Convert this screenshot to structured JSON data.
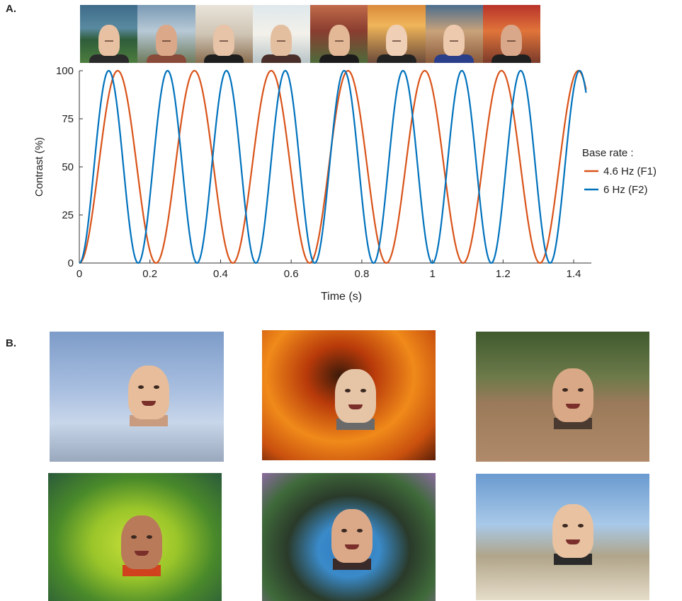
{
  "panel_a_label": "A.",
  "panel_b_label": "B.",
  "strip_photos": [
    {
      "bg": "linear-gradient(180deg,#3d6b8a 0%,#5a8aa0 40%,#2f5d3a 60%,#4d7d3e 100%)",
      "skin": "#e8c1a2",
      "shirt": "#2a2a2a"
    },
    {
      "bg": "linear-gradient(180deg,#7a9ab5 0%,#b7c9d6 45%,#6d7a5a 100%)",
      "skin": "#dba88a",
      "shirt": "#8a4a3a"
    },
    {
      "bg": "linear-gradient(180deg,#e9e3d9 0%,#cfc5b5 50%,#8a6e50 100%)",
      "skin": "#e7c3a8",
      "shirt": "#1e1e1e"
    },
    {
      "bg": "linear-gradient(180deg,#dfe8ec 0%,#f3f1ea 50%,#b9c5c8 100%)",
      "skin": "#e4bf9f",
      "shirt": "#4a2e2a"
    },
    {
      "bg": "linear-gradient(180deg,#c06a4a 0%,#8a3d30 45%,#4d6a3a 100%)",
      "skin": "#e2b896",
      "shirt": "#1b1b1b"
    },
    {
      "bg": "linear-gradient(180deg,#d98a3a 0%,#f0b55a 35%,#6a4a3a 100%)",
      "skin": "#efcfb5",
      "shirt": "#222"
    },
    {
      "bg": "linear-gradient(180deg,#4b6e8e 0%,#c9a27a 45%,#8a5a3a 100%)",
      "skin": "#edc9ad",
      "shirt": "#2b3e8a"
    },
    {
      "bg": "linear-gradient(180deg,#b8332a 0%,#e0743a 45%,#7a3a2a 100%)",
      "skin": "#d9a88a",
      "shirt": "#1f1f1f"
    }
  ],
  "photos_b": [
    {
      "name": "photo-execution-room",
      "bg": "linear-gradient(180deg,#7d9cc9 0%,#a9bfe0 45%,#c8d6ea 70%,#9aa8bd 100%)",
      "skin": "#e7bd9b",
      "neck": "#c99c80"
    },
    {
      "name": "photo-fire",
      "bg": "radial-gradient(ellipse at 45% 35%,#3a1a0a 0%,#b83a0a 25%,#f08a1a 55%,#c9500e 80%,#5a1e08 100%)",
      "skin": "#e6c4a6",
      "neck": "#6a6a6a"
    },
    {
      "name": "photo-skeleton",
      "bg": "linear-gradient(180deg,#3f5a2e 0%,#6d7a4a 35%,#9a7a5a 55%,#b08a6a 100%)",
      "skin": "#d9a886",
      "neck": "#4a3a30"
    },
    {
      "name": "photo-flowers",
      "bg": "radial-gradient(ellipse at 50% 55%,#c8e03a 0%,#9ac52a 35%,#4a8a2a 65%,#2a5a3a 100%)",
      "skin": "#b97a5a",
      "neck": "#d0421e"
    },
    {
      "name": "photo-butterfly",
      "bg": "radial-gradient(ellipse at 50% 60%,#2f7ac0 0%,#3a8ac9 25%,#2a3a2a 50%,#3f6a3a 75%,#8a6aa0 100%)",
      "skin": "#dba888",
      "neck": "#3a2a2a"
    },
    {
      "name": "photo-beach",
      "bg": "linear-gradient(180deg,#6a9ad0 0%,#a8c9e8 40%,#b0a58a 65%,#e6ddc9 100%)",
      "skin": "#e9c2a2",
      "neck": "#2a2a2a"
    }
  ],
  "chart_data": {
    "type": "line",
    "xlabel": "Time (s)",
    "ylabel": "Contrast (%)",
    "xlim": [
      0,
      1.45
    ],
    "ylim": [
      0,
      100
    ],
    "xticks": [
      0,
      0.2,
      0.4,
      0.6,
      0.8,
      1,
      1.2,
      1.4
    ],
    "xtick_labels": [
      "0",
      "0.2",
      "0.4",
      "0.6",
      "0.8",
      "1",
      "1.2",
      "1.4"
    ],
    "yticks": [
      0,
      25,
      50,
      75,
      100
    ],
    "ytick_labels": [
      "0",
      "25",
      "50",
      "75",
      "100"
    ],
    "legend_title": "Base rate :",
    "legend_position": "right",
    "grid": false,
    "function": "contrast = 50 * (1 - cos(2*pi*f*t))",
    "t_end": 1.435,
    "series": [
      {
        "name": "4.6 Hz (F1)",
        "frequency_hz": 4.6,
        "color": "#D95319"
      },
      {
        "name": "6 Hz (F2)",
        "frequency_hz": 6,
        "color": "#0072BD"
      }
    ]
  }
}
